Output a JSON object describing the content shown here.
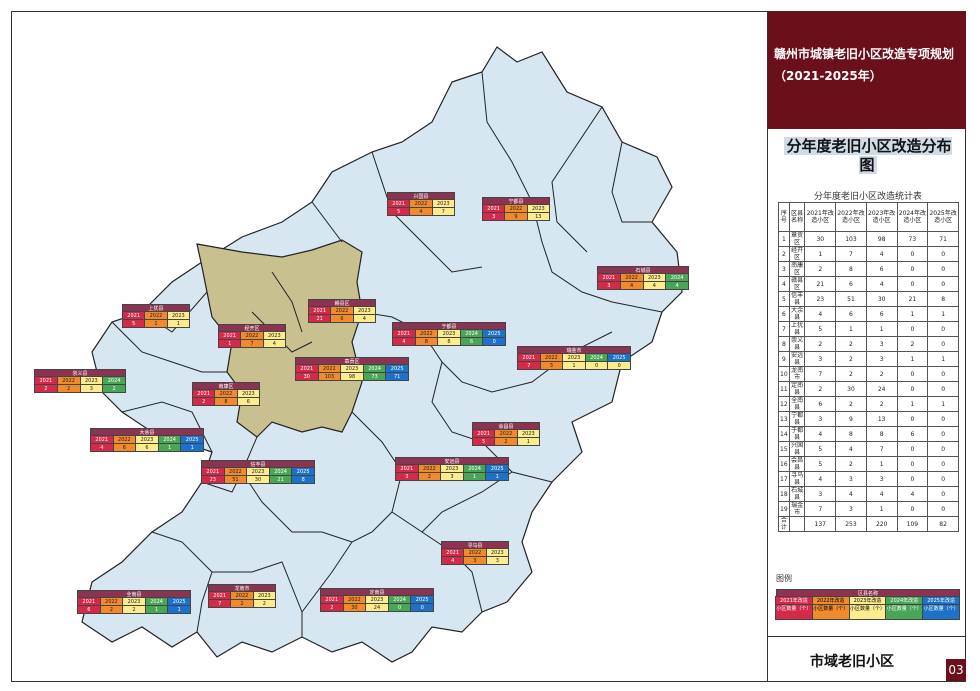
{
  "title": "赣州市城镇老旧小区改造专项规划（2021-2025年）",
  "subtitle": "分年度老旧小区改造分布图",
  "stat_caption": "分年度老旧小区改造统计表",
  "table": {
    "headers": [
      "序号",
      "区县名称",
      "2021年改造小区",
      "2022年改造小区",
      "2023年改造小区",
      "2024年改造小区",
      "2025年改造小区"
    ],
    "rows": [
      [
        "1",
        "章贡区",
        "30",
        "103",
        "98",
        "73",
        "71"
      ],
      [
        "2",
        "经开区",
        "1",
        "7",
        "4",
        "0",
        "0"
      ],
      [
        "3",
        "南康区",
        "2",
        "8",
        "6",
        "0",
        "0"
      ],
      [
        "4",
        "赣县区",
        "21",
        "6",
        "4",
        "0",
        "0"
      ],
      [
        "5",
        "信丰县",
        "23",
        "51",
        "30",
        "21",
        "8"
      ],
      [
        "6",
        "大余县",
        "4",
        "6",
        "6",
        "1",
        "1"
      ],
      [
        "7",
        "上犹县",
        "5",
        "1",
        "1",
        "0",
        "0"
      ],
      [
        "8",
        "崇义县",
        "2",
        "2",
        "3",
        "2",
        "0"
      ],
      [
        "9",
        "安远县",
        "3",
        "2",
        "3",
        "1",
        "1"
      ],
      [
        "10",
        "龙南市",
        "7",
        "2",
        "2",
        "0",
        "0"
      ],
      [
        "11",
        "定南县",
        "2",
        "30",
        "24",
        "0",
        "0"
      ],
      [
        "12",
        "全南县",
        "6",
        "2",
        "2",
        "1",
        "1"
      ],
      [
        "13",
        "宁都县",
        "3",
        "9",
        "13",
        "0",
        "0"
      ],
      [
        "14",
        "于都县",
        "4",
        "8",
        "8",
        "6",
        "0"
      ],
      [
        "15",
        "兴国县",
        "5",
        "4",
        "7",
        "0",
        "0"
      ],
      [
        "16",
        "会昌县",
        "5",
        "2",
        "1",
        "0",
        "0"
      ],
      [
        "17",
        "寻乌县",
        "4",
        "3",
        "3",
        "0",
        "0"
      ],
      [
        "18",
        "石城县",
        "3",
        "4",
        "4",
        "4",
        "0"
      ],
      [
        "19",
        "瑞金市",
        "7",
        "3",
        "1",
        "0",
        "0"
      ],
      [
        "合计",
        "",
        "137",
        "253",
        "220",
        "109",
        "82"
      ]
    ]
  },
  "legend_label": "图例",
  "legend": {
    "title": "区县名称",
    "years": [
      "2021年改造",
      "2022年改造",
      "2023年改造",
      "2024年改造",
      "2025年改造"
    ],
    "desc": [
      "小区数量（个）",
      "小区数量（个）",
      "小区数量（个）",
      "小区数量（个）",
      "小区数量（个）"
    ]
  },
  "footer_title": "市域老旧小区",
  "page_number": "03",
  "year_labels": [
    "2021",
    "2022",
    "2023",
    "2024",
    "2025"
  ],
  "county_boxes": [
    {
      "name": "兴国县",
      "values": [
        "5",
        "4",
        "7"
      ]
    },
    {
      "name": "宁都县",
      "values": [
        "3",
        "9",
        "13"
      ]
    },
    {
      "name": "石城县",
      "values": [
        "3",
        "4",
        "4",
        "4"
      ]
    },
    {
      "name": "上犹县",
      "values": [
        "5",
        "1",
        "1"
      ]
    },
    {
      "name": "赣县区",
      "values": [
        "21",
        "6",
        "4"
      ]
    },
    {
      "name": "于都县",
      "values": [
        "4",
        "8",
        "8",
        "6",
        "0"
      ]
    },
    {
      "name": "经开区",
      "values": [
        "1",
        "7",
        "4"
      ]
    },
    {
      "name": "瑞金市",
      "values": [
        "7",
        "3",
        "1",
        "0",
        "0"
      ]
    },
    {
      "name": "章贡区",
      "values": [
        "30",
        "103",
        "98",
        "73",
        "71"
      ]
    },
    {
      "name": "崇义县",
      "values": [
        "2",
        "2",
        "3",
        "2"
      ]
    },
    {
      "name": "南康区",
      "values": [
        "2",
        "8",
        "6"
      ]
    },
    {
      "name": "会昌县",
      "values": [
        "5",
        "2",
        "1"
      ]
    },
    {
      "name": "大余县",
      "values": [
        "4",
        "6",
        "6",
        "1",
        "1"
      ]
    },
    {
      "name": "信丰县",
      "values": [
        "23",
        "51",
        "30",
        "21",
        "8"
      ]
    },
    {
      "name": "安远县",
      "values": [
        "3",
        "2",
        "3",
        "1",
        "1"
      ]
    },
    {
      "name": "寻乌县",
      "values": [
        "4",
        "3",
        "3"
      ]
    },
    {
      "name": "全南县",
      "values": [
        "6",
        "2",
        "2",
        "1",
        "1"
      ]
    },
    {
      "name": "龙南市",
      "values": [
        "7",
        "2",
        "2"
      ]
    },
    {
      "name": "定南县",
      "values": [
        "2",
        "30",
        "24",
        "0",
        "0"
      ]
    }
  ],
  "colors": {
    "y2021": "#d42a4a",
    "y2022": "#f08a2c",
    "y2023": "#fcec8d",
    "y2024": "#4aa657",
    "y2025": "#1c72c8",
    "county_fill": "#d6e7f1",
    "central_fill": "#c8c08f",
    "title_bg": "#6b0f1a",
    "box_title": "#8a3451"
  }
}
